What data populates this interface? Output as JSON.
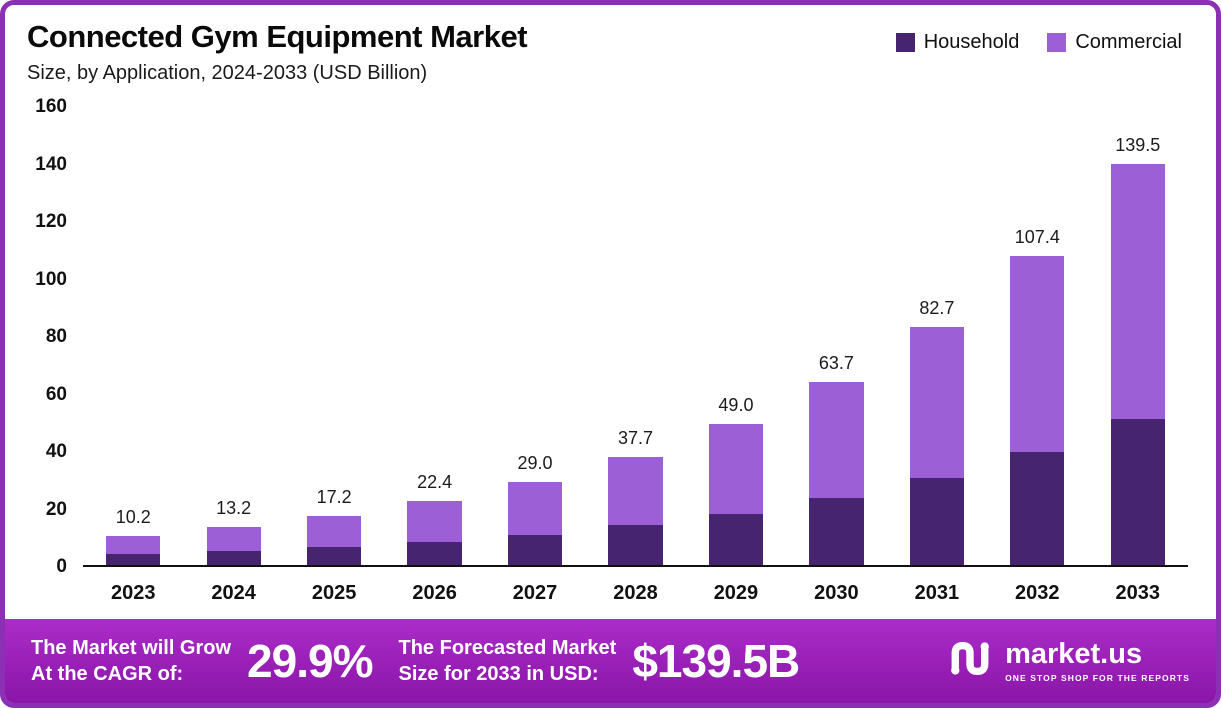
{
  "header": {
    "title": "Connected Gym Equipment Market",
    "subtitle": "Size, by Application, 2024-2033 (USD Billion)"
  },
  "colors": {
    "household": "#46246f",
    "commercial": "#9c5fd6",
    "border": "#8b2fb5",
    "banner_top": "#ab2cc9",
    "banner_bottom": "#8a15a8"
  },
  "chart_data": {
    "type": "bar",
    "stacked": true,
    "title": "Connected Gym Equipment Market",
    "subtitle": "Size, by Application, 2024-2033 (USD Billion)",
    "xlabel": "",
    "ylabel": "USD Billion",
    "ylim": [
      0,
      160
    ],
    "yticks": [
      0,
      20,
      40,
      60,
      80,
      100,
      120,
      140,
      160
    ],
    "grid": false,
    "legend_position": "top-right",
    "categories": [
      "2023",
      "2024",
      "2025",
      "2026",
      "2027",
      "2028",
      "2029",
      "2030",
      "2031",
      "2032",
      "2033"
    ],
    "series": [
      {
        "name": "Household",
        "color": "#46246f",
        "values": [
          3.7,
          4.8,
          6.3,
          8.2,
          10.6,
          13.8,
          17.9,
          23.3,
          30.2,
          39.2,
          50.9
        ]
      },
      {
        "name": "Commercial",
        "color": "#9c5fd6",
        "values": [
          6.5,
          8.4,
          10.9,
          14.2,
          18.4,
          23.9,
          31.1,
          40.4,
          52.5,
          68.2,
          88.6
        ]
      }
    ],
    "totals": [
      10.2,
      13.2,
      17.2,
      22.4,
      29.0,
      37.7,
      49.0,
      63.7,
      82.7,
      107.4,
      139.5
    ]
  },
  "footer": {
    "cagr_label_line1": "The Market will Grow",
    "cagr_label_line2": "At the CAGR of:",
    "cagr_value": "29.9%",
    "forecast_label_line1": "The Forecasted Market",
    "forecast_label_line2": "Size for 2033 in USD:",
    "forecast_value": "$139.5B",
    "brand": "market.us",
    "brand_tagline": "ONE STOP SHOP FOR THE REPORTS"
  }
}
